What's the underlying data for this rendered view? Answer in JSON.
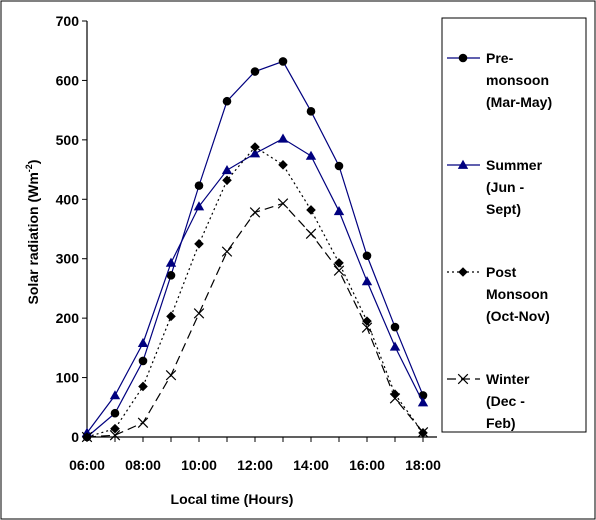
{
  "chart_data": {
    "type": "line",
    "title": "",
    "xlabel": "Local time (Hours)",
    "ylabel_main": "Solar radiation (Wm",
    "ylabel_sup": "-2",
    "ylabel_close": ")",
    "x": [
      6,
      7,
      8,
      9,
      10,
      11,
      12,
      13,
      14,
      15,
      16,
      17,
      18
    ],
    "xlim": [
      6,
      18.5
    ],
    "ylim": [
      0,
      700
    ],
    "x_ticks": [
      {
        "value": 6,
        "label": "06:00"
      },
      {
        "value": 8,
        "label": "08:00"
      },
      {
        "value": 10,
        "label": "10:00"
      },
      {
        "value": 12,
        "label": "12:00"
      },
      {
        "value": 14,
        "label": "14:00"
      },
      {
        "value": 16,
        "label": "16:00"
      },
      {
        "value": 18,
        "label": "18:00"
      }
    ],
    "y_ticks": [
      {
        "value": 0,
        "label": "0"
      },
      {
        "value": 100,
        "label": "100"
      },
      {
        "value": 200,
        "label": "200"
      },
      {
        "value": 300,
        "label": "300"
      },
      {
        "value": 400,
        "label": "400"
      },
      {
        "value": 500,
        "label": "500"
      },
      {
        "value": 600,
        "label": "600"
      },
      {
        "value": 700,
        "label": "700"
      }
    ],
    "grid": false,
    "legend_position": "right",
    "series": [
      {
        "id": "premonsoon",
        "legend_lines": [
          "Pre-",
          "monsoon",
          "(Mar-May)"
        ],
        "color": "#00007f",
        "marker": "circle",
        "marker_color": "#000000",
        "dash": "solid",
        "values": [
          0,
          40,
          128,
          272,
          423,
          565,
          615,
          632,
          548,
          456,
          305,
          185,
          70
        ]
      },
      {
        "id": "summer",
        "legend_lines": [
          "Summer",
          "(Jun -",
          "Sept)"
        ],
        "color": "#00007f",
        "marker": "triangle",
        "marker_color": "#00007f",
        "dash": "solid",
        "values": [
          7,
          70,
          158,
          293,
          388,
          449,
          477,
          502,
          473,
          380,
          262,
          152,
          58
        ]
      },
      {
        "id": "postmonsoon",
        "legend_lines": [
          "Post",
          "Monsoon",
          "(Oct-Nov)"
        ],
        "color": "#000000",
        "marker": "diamond",
        "marker_color": "#000000",
        "dash": "dotted",
        "values": [
          0,
          14,
          85,
          203,
          325,
          432,
          488,
          458,
          382,
          293,
          195,
          72,
          7
        ]
      },
      {
        "id": "winter",
        "legend_lines": [
          "Winter",
          "(Dec -",
          "Feb)"
        ],
        "color": "#000000",
        "marker": "x",
        "marker_color": "#000000",
        "dash": "dashed",
        "values": [
          0,
          3,
          24,
          104,
          208,
          312,
          378,
          393,
          342,
          280,
          184,
          65,
          8
        ]
      }
    ]
  }
}
